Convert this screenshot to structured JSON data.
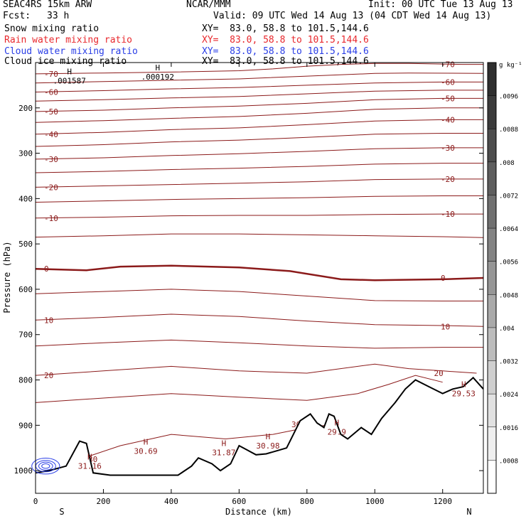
{
  "header": {
    "model": "SEAC4RS 15km ARW",
    "org": "NCAR/MMM",
    "init": "Init: 00 UTC Tue 13 Aug 13",
    "fcst_label": "Fcst:",
    "fcst_value": "33 h",
    "valid": "Valid: 09 UTC Wed 14 Aug 13 (04 CDT Wed 14 Aug 13)",
    "fields": [
      {
        "name": "Snow mixing ratio",
        "xy": "XY=  83.0, 58.8 to 101.5,144.6",
        "color": "#000000"
      },
      {
        "name": "Rain water mixing ratio",
        "xy": "XY=  83.0, 58.8 to 101.5,144.6",
        "color": "#e8282d"
      },
      {
        "name": "Cloud water mixing ratio",
        "xy": "XY=  83.0, 58.8 to 101.5,144.6",
        "color": "#2a3ee6"
      },
      {
        "name": "Cloud ice mixing ratio",
        "xy": "XY=  83.0, 58.8 to 101.5,144.6",
        "color": "#000000"
      }
    ]
  },
  "chart_data": {
    "type": "contour",
    "xlabel": "Distance (km)",
    "ylabel": "Pressure (hPa)",
    "xlim": [
      0,
      1320
    ],
    "ylim": [
      1050,
      100
    ],
    "x_ticks": [
      0,
      200,
      400,
      600,
      800,
      1000,
      1200
    ],
    "y_ticks": [
      200,
      300,
      400,
      500,
      600,
      700,
      800,
      900,
      1000
    ],
    "x_end_labels": {
      "left": "S",
      "right": "N"
    },
    "contour_color": "#8b1a1a",
    "temperature_contours": [
      {
        "level": -70,
        "label": "-70",
        "points": [
          [
            0,
            125
          ],
          [
            200,
            123
          ],
          [
            400,
            121
          ],
          [
            600,
            118
          ],
          [
            700,
            114
          ],
          [
            800,
            108
          ],
          [
            900,
            104
          ],
          [
            1000,
            102
          ],
          [
            1100,
            102
          ],
          [
            1260,
            104
          ],
          [
            1320,
            104
          ]
        ]
      },
      {
        "level": -65,
        "label": "",
        "points": [
          [
            0,
            145
          ],
          [
            200,
            142
          ],
          [
            400,
            139
          ],
          [
            600,
            136
          ],
          [
            800,
            130
          ],
          [
            1000,
            124
          ],
          [
            1100,
            123
          ],
          [
            1320,
            124
          ]
        ]
      },
      {
        "level": -60,
        "label": "-60",
        "points": [
          [
            0,
            165
          ],
          [
            200,
            162
          ],
          [
            400,
            158
          ],
          [
            600,
            155
          ],
          [
            800,
            150
          ],
          [
            1000,
            145
          ],
          [
            1200,
            143
          ],
          [
            1320,
            143
          ]
        ]
      },
      {
        "level": -55,
        "label": "",
        "points": [
          [
            0,
            185
          ],
          [
            200,
            182
          ],
          [
            400,
            178
          ],
          [
            600,
            175
          ],
          [
            800,
            169
          ],
          [
            1000,
            163
          ],
          [
            1200,
            161
          ],
          [
            1320,
            161
          ]
        ]
      },
      {
        "level": -50,
        "label": "-50",
        "points": [
          [
            0,
            208
          ],
          [
            200,
            205
          ],
          [
            400,
            200
          ],
          [
            600,
            196
          ],
          [
            800,
            190
          ],
          [
            1000,
            182
          ],
          [
            1200,
            179
          ],
          [
            1320,
            179
          ]
        ]
      },
      {
        "level": -45,
        "label": "",
        "points": [
          [
            0,
            232
          ],
          [
            200,
            228
          ],
          [
            400,
            223
          ],
          [
            600,
            219
          ],
          [
            800,
            212
          ],
          [
            1000,
            203
          ],
          [
            1200,
            200
          ],
          [
            1320,
            200
          ]
        ]
      },
      {
        "level": -40,
        "label": "-40",
        "points": [
          [
            0,
            258
          ],
          [
            200,
            254
          ],
          [
            400,
            248
          ],
          [
            600,
            244
          ],
          [
            800,
            237
          ],
          [
            1000,
            229
          ],
          [
            1200,
            226
          ],
          [
            1320,
            226
          ]
        ]
      },
      {
        "level": -35,
        "label": "",
        "points": [
          [
            0,
            285
          ],
          [
            200,
            281
          ],
          [
            400,
            275
          ],
          [
            600,
            271
          ],
          [
            800,
            265
          ],
          [
            1000,
            258
          ],
          [
            1200,
            256
          ],
          [
            1320,
            256
          ]
        ]
      },
      {
        "level": -30,
        "label": "-30",
        "points": [
          [
            0,
            313
          ],
          [
            200,
            310
          ],
          [
            400,
            305
          ],
          [
            600,
            301
          ],
          [
            800,
            296
          ],
          [
            1000,
            290
          ],
          [
            1200,
            288
          ],
          [
            1320,
            288
          ]
        ]
      },
      {
        "level": -25,
        "label": "",
        "points": [
          [
            0,
            343
          ],
          [
            200,
            340
          ],
          [
            400,
            336
          ],
          [
            600,
            333
          ],
          [
            800,
            329
          ],
          [
            1000,
            324
          ],
          [
            1200,
            322
          ],
          [
            1320,
            322
          ]
        ]
      },
      {
        "level": -20,
        "label": "-20",
        "points": [
          [
            0,
            375
          ],
          [
            200,
            372
          ],
          [
            400,
            369
          ],
          [
            600,
            366
          ],
          [
            800,
            363
          ],
          [
            1000,
            358
          ],
          [
            1200,
            357
          ],
          [
            1320,
            357
          ]
        ]
      },
      {
        "level": -15,
        "label": "",
        "points": [
          [
            0,
            408
          ],
          [
            200,
            405
          ],
          [
            400,
            402
          ],
          [
            600,
            400
          ],
          [
            800,
            398
          ],
          [
            1000,
            395
          ],
          [
            1200,
            394
          ],
          [
            1320,
            394
          ]
        ]
      },
      {
        "level": -10,
        "label": "-10",
        "points": [
          [
            0,
            443
          ],
          [
            200,
            441
          ],
          [
            400,
            438
          ],
          [
            600,
            437
          ],
          [
            800,
            437
          ],
          [
            1000,
            435
          ],
          [
            1200,
            434
          ],
          [
            1320,
            434
          ]
        ]
      },
      {
        "level": -5,
        "label": "",
        "points": [
          [
            0,
            485
          ],
          [
            200,
            482
          ],
          [
            400,
            478
          ],
          [
            600,
            478
          ],
          [
            800,
            480
          ],
          [
            1000,
            482
          ],
          [
            1200,
            484
          ],
          [
            1320,
            486
          ]
        ]
      },
      {
        "level": 0,
        "label": "0",
        "points": [
          [
            0,
            555
          ],
          [
            150,
            558
          ],
          [
            250,
            550
          ],
          [
            400,
            548
          ],
          [
            600,
            552
          ],
          [
            750,
            560
          ],
          [
            900,
            578
          ],
          [
            1000,
            580
          ],
          [
            1200,
            578
          ],
          [
            1320,
            575
          ]
        ]
      },
      {
        "level": 5,
        "label": "",
        "points": [
          [
            0,
            610
          ],
          [
            200,
            605
          ],
          [
            400,
            600
          ],
          [
            600,
            605
          ],
          [
            800,
            615
          ],
          [
            1000,
            625
          ],
          [
            1200,
            626
          ],
          [
            1320,
            626
          ]
        ]
      },
      {
        "level": 10,
        "label": "10",
        "points": [
          [
            0,
            668
          ],
          [
            200,
            662
          ],
          [
            400,
            655
          ],
          [
            600,
            660
          ],
          [
            800,
            670
          ],
          [
            1000,
            678
          ],
          [
            1200,
            680
          ],
          [
            1320,
            682
          ]
        ]
      },
      {
        "level": 15,
        "label": "",
        "points": [
          [
            0,
            725
          ],
          [
            200,
            718
          ],
          [
            400,
            712
          ],
          [
            600,
            718
          ],
          [
            800,
            725
          ],
          [
            1000,
            730
          ],
          [
            1200,
            728
          ],
          [
            1320,
            728
          ]
        ]
      },
      {
        "level": 20,
        "label": "20",
        "points": [
          [
            0,
            790
          ],
          [
            200,
            780
          ],
          [
            400,
            770
          ],
          [
            600,
            780
          ],
          [
            800,
            785
          ],
          [
            1000,
            765
          ],
          [
            1100,
            775
          ],
          [
            1200,
            780
          ],
          [
            1300,
            785
          ]
        ]
      },
      {
        "level": 25,
        "label": "",
        "points": [
          [
            0,
            850
          ],
          [
            200,
            840
          ],
          [
            400,
            830
          ],
          [
            600,
            838
          ],
          [
            800,
            845
          ],
          [
            950,
            830
          ],
          [
            1040,
            810
          ],
          [
            1120,
            790
          ],
          [
            1200,
            805
          ]
        ]
      },
      {
        "level": 30,
        "label": "30",
        "points": [
          [
            130,
            975
          ],
          [
            250,
            945
          ],
          [
            400,
            920
          ],
          [
            560,
            930
          ],
          [
            700,
            920
          ],
          [
            800,
            905
          ],
          [
            880,
            898
          ]
        ]
      }
    ],
    "terrain": {
      "points": [
        [
          0,
          1005
        ],
        [
          40,
          1000
        ],
        [
          90,
          990
        ],
        [
          130,
          935
        ],
        [
          150,
          940
        ],
        [
          170,
          1005
        ],
        [
          220,
          1010
        ],
        [
          350,
          1010
        ],
        [
          420,
          1010
        ],
        [
          460,
          990
        ],
        [
          480,
          972
        ],
        [
          520,
          985
        ],
        [
          545,
          1000
        ],
        [
          575,
          985
        ],
        [
          600,
          945
        ],
        [
          625,
          955
        ],
        [
          650,
          965
        ],
        [
          680,
          963
        ],
        [
          740,
          950
        ],
        [
          780,
          890
        ],
        [
          810,
          875
        ],
        [
          830,
          895
        ],
        [
          850,
          905
        ],
        [
          865,
          875
        ],
        [
          880,
          880
        ],
        [
          900,
          920
        ],
        [
          920,
          930
        ],
        [
          960,
          905
        ],
        [
          990,
          920
        ],
        [
          1020,
          885
        ],
        [
          1060,
          850
        ],
        [
          1090,
          820
        ],
        [
          1120,
          800
        ],
        [
          1160,
          815
        ],
        [
          1200,
          830
        ],
        [
          1230,
          820
        ],
        [
          1260,
          815
        ],
        [
          1290,
          795
        ],
        [
          1320,
          820
        ]
      ],
      "color": "#000000"
    },
    "cloud_water": {
      "color": "#2a3ee6",
      "region_x": [
        0,
        60
      ],
      "region_p": [
        970,
        1010
      ]
    },
    "extrema": [
      {
        "label": "H",
        "value": ".001587",
        "x": 100,
        "p": 135,
        "color": "#000000"
      },
      {
        "label": "H",
        "value": ".000192",
        "x": 360,
        "p": 127,
        "color": "#000000"
      },
      {
        "label": "H",
        "value": "31.16",
        "x": 160,
        "p": 985,
        "color": "#8b1a1a"
      },
      {
        "label": "H",
        "value": "30.69",
        "x": 325,
        "p": 952,
        "color": "#8b1a1a"
      },
      {
        "label": "H",
        "value": "31.87",
        "x": 555,
        "p": 955,
        "color": "#8b1a1a"
      },
      {
        "label": "H",
        "value": "30.98",
        "x": 685,
        "p": 940,
        "color": "#8b1a1a"
      },
      {
        "label": "H",
        "value": "29.9",
        "x": 888,
        "p": 910,
        "color": "#8b1a1a"
      },
      {
        "label": "H",
        "value": "29.53",
        "x": 1262,
        "p": 825,
        "color": "#8b1a1a"
      }
    ],
    "colorbar": {
      "unit": "g kg⁻¹",
      "tick_labels": [
        ".0096",
        ".0088",
        ".008",
        ".0072",
        ".0064",
        ".0056",
        ".0048",
        ".004",
        ".0032",
        ".0024",
        ".0016",
        ".0008"
      ],
      "colors": [
        "#2f2f2f",
        "#3b3b3b",
        "#4d4d4d",
        "#5e5e5e",
        "#707070",
        "#838383",
        "#969696",
        "#a9a9a9",
        "#bcbcbc",
        "#cfcfcf",
        "#e1e1e1",
        "#efefef",
        "#ffffff"
      ]
    }
  }
}
